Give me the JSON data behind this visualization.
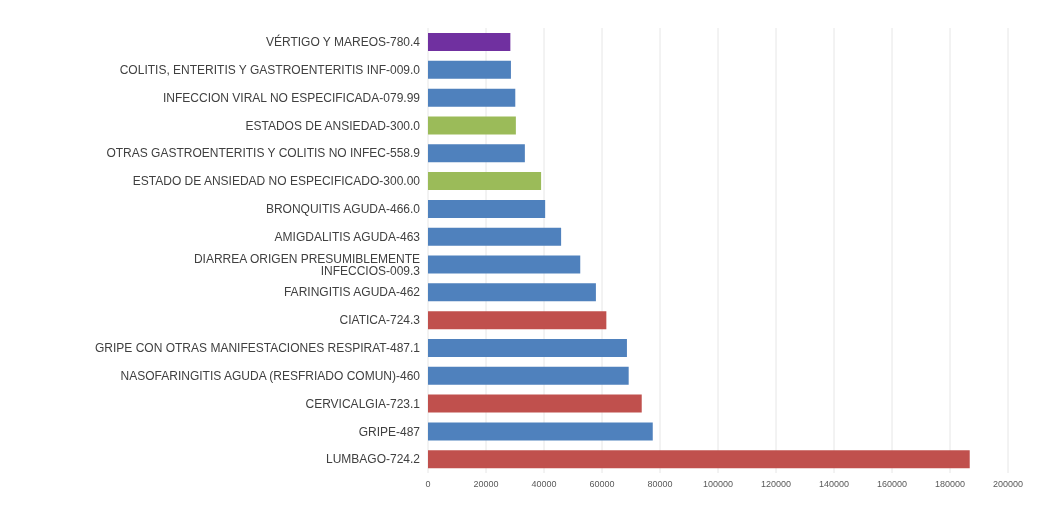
{
  "chart_data": {
    "type": "bar",
    "orientation": "horizontal",
    "categories": [
      "VÉRTIGO Y MAREOS-780.4",
      "COLITIS, ENTERITIS Y GASTROENTERITIS INF-009.0",
      "INFECCION VIRAL NO ESPECIFICADA-079.99",
      "ESTADOS DE ANSIEDAD-300.0",
      "OTRAS GASTROENTERITIS Y COLITIS NO INFEC-558.9",
      "ESTADO DE ANSIEDAD NO ESPECIFICADO-300.00",
      "BRONQUITIS AGUDA-466.0",
      "AMIGDALITIS AGUDA-463",
      "DIARREA ORIGEN PRESUMIBLEMENTE INFECCIOS-009.3",
      "FARINGITIS AGUDA-462",
      "CIATICA-724.3",
      "GRIPE CON OTRAS MANIFESTACIONES RESPIRAT-487.1",
      "NASOFARINGITIS AGUDA (RESFRIADO COMUN)-460",
      "CERVICALGIA-723.1",
      "GRIPE-487",
      "LUMBAGO-724.2"
    ],
    "values": [
      28400,
      28600,
      30100,
      30300,
      33400,
      39000,
      40400,
      45900,
      52500,
      57900,
      61500,
      68600,
      69200,
      73700,
      77500,
      186800
    ],
    "colors": [
      "#7030a0",
      "#4f81bd",
      "#4f81bd",
      "#9bbb59",
      "#4f81bd",
      "#9bbb59",
      "#4f81bd",
      "#4f81bd",
      "#4f81bd",
      "#4f81bd",
      "#c0504d",
      "#4f81bd",
      "#4f81bd",
      "#c0504d",
      "#4f81bd",
      "#c0504d"
    ],
    "xlim": [
      0,
      200000
    ],
    "xticks": [
      0,
      20000,
      40000,
      60000,
      80000,
      100000,
      120000,
      140000,
      160000,
      180000,
      200000
    ],
    "grid": "x"
  }
}
